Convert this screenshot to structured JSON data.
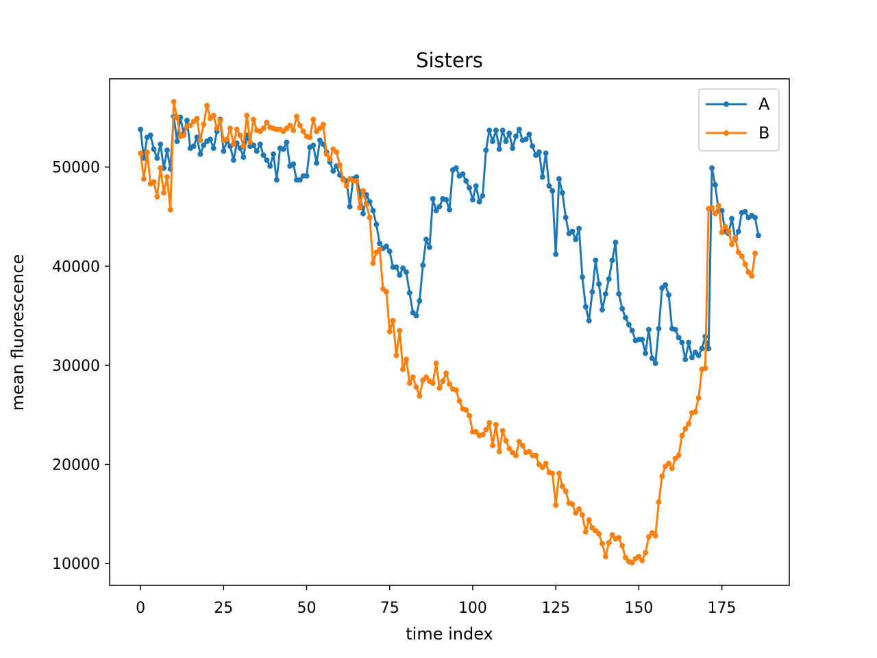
{
  "chart_data": {
    "type": "line",
    "title": "Sisters",
    "xlabel": "time index",
    "ylabel": "mean fluorescence",
    "xlim": [
      -9.3,
      195.3
    ],
    "ylim": [
      7800,
      58900
    ],
    "x_ticks": [
      0,
      25,
      50,
      75,
      100,
      125,
      150,
      175
    ],
    "y_ticks": [
      10000,
      20000,
      30000,
      40000,
      50000
    ],
    "grid": false,
    "legend_position": "top-right",
    "marker": "circle",
    "series": [
      {
        "name": "A",
        "color": "#1f77b4",
        "values": [
          53800,
          50900,
          53000,
          53200,
          51800,
          50900,
          52300,
          49900,
          51700,
          49800,
          55100,
          52600,
          55000,
          53400,
          54700,
          51900,
          52100,
          53000,
          51300,
          52200,
          52600,
          52800,
          51900,
          53600,
          54800,
          51600,
          52600,
          52100,
          50700,
          52400,
          51900,
          51000,
          53200,
          52100,
          52200,
          51600,
          52300,
          51200,
          50700,
          50100,
          51300,
          48700,
          51900,
          51800,
          52500,
          50100,
          50300,
          48700,
          48700,
          49100,
          49100,
          52000,
          52200,
          50400,
          52700,
          52300,
          51500,
          50500,
          49600,
          50100,
          49200,
          48800,
          48600,
          46000,
          48800,
          49000,
          47500,
          45300,
          47200,
          46500,
          45600,
          44200,
          42300,
          41800,
          42000,
          41500,
          39900,
          39900,
          39100,
          39800,
          39400,
          37300,
          35300,
          35000,
          36500,
          40100,
          42700,
          41900,
          46800,
          45600,
          46000,
          46800,
          46700,
          45700,
          49700,
          49900,
          49100,
          49300,
          48600,
          47900,
          46700,
          48100,
          46500,
          47100,
          51700,
          53700,
          52600,
          53700,
          51800,
          53700,
          52600,
          53400,
          51900,
          53100,
          53800,
          52700,
          52800,
          53300,
          52100,
          51200,
          51500,
          49000,
          51400,
          48100,
          47600,
          41200,
          48800,
          47400,
          44900,
          43300,
          43500,
          42700,
          43800,
          38900,
          35900,
          34500,
          37400,
          40600,
          38200,
          35600,
          37200,
          38700,
          40600,
          42400,
          37200,
          35700,
          34800,
          34100,
          33500,
          32500,
          32600,
          32600,
          31200,
          33600,
          30700,
          30200,
          33700,
          37800,
          38100,
          37100,
          33700,
          33600,
          32800,
          32300,
          30600,
          32300,
          30800,
          31300,
          31000,
          31700,
          32900,
          31700,
          49900,
          48200,
          45600,
          45600,
          43500,
          43300,
          44800,
          42700,
          43500,
          45400,
          45500,
          44900,
          45100,
          44900,
          43100
        ]
      },
      {
        "name": "B",
        "color": "#ff7f0e",
        "values": [
          51400,
          48800,
          51500,
          48300,
          48500,
          47000,
          49900,
          47400,
          49000,
          45700,
          56600,
          55000,
          53100,
          53200,
          54100,
          54200,
          54600,
          54900,
          52700,
          54300,
          56200,
          54900,
          55200,
          53900,
          54700,
          52700,
          52800,
          53900,
          52300,
          53800,
          53200,
          52100,
          55200,
          52500,
          54800,
          53700,
          53600,
          53900,
          54500,
          54000,
          53900,
          53800,
          53800,
          53600,
          53900,
          54200,
          53700,
          55100,
          54200,
          53600,
          53100,
          53000,
          54800,
          53600,
          53900,
          54300,
          51300,
          50800,
          51800,
          51500,
          50200,
          48700,
          48100,
          48800,
          48600,
          48600,
          45900,
          47600,
          46200,
          44900,
          40300,
          41400,
          41700,
          37700,
          37400,
          33400,
          34500,
          31000,
          33500,
          29600,
          30600,
          28200,
          28800,
          27800,
          26900,
          28500,
          28800,
          28400,
          28200,
          30200,
          27700,
          28400,
          29200,
          28100,
          27600,
          27500,
          26400,
          25600,
          25500,
          24900,
          23300,
          23300,
          22900,
          23000,
          23500,
          24200,
          21900,
          24000,
          21300,
          23400,
          22400,
          21600,
          21200,
          20900,
          22300,
          21900,
          21200,
          21300,
          20900,
          20900,
          20000,
          19700,
          20100,
          19200,
          19100,
          15900,
          19100,
          17800,
          17300,
          16100,
          16000,
          15100,
          15500,
          14900,
          13200,
          14400,
          13600,
          13300,
          13000,
          12000,
          10700,
          12100,
          12900,
          12500,
          12600,
          11800,
          10600,
          10200,
          10100,
          10500,
          10700,
          10300,
          11100,
          12700,
          13100,
          12800,
          16200,
          18800,
          19800,
          20100,
          19600,
          20600,
          20900,
          22900,
          23600,
          24100,
          25200,
          25300,
          26700,
          29600,
          29700,
          45800,
          45900,
          45300,
          46100,
          43400,
          44000,
          43500,
          42200,
          42900,
          41400,
          41000,
          40200,
          39400,
          39000,
          41300
        ]
      }
    ]
  }
}
